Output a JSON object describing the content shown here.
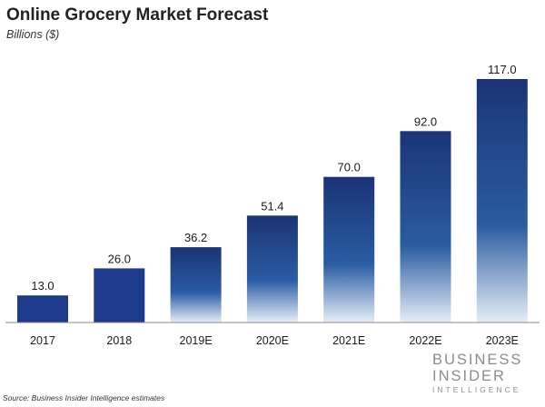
{
  "colors": {
    "bar_solid": "#1e3a8a",
    "bar_dark": "#1b3476",
    "bar_mid": "#2a5ca3",
    "bar_fade": "#e6eef7",
    "axis": "#888888",
    "text": "#1a1a1a",
    "brand": "#8c8c8c"
  },
  "chart_data": {
    "type": "bar",
    "title": "Online Grocery Market Forecast",
    "subtitle": "Billions ($)",
    "categories": [
      "2017",
      "2018",
      "2019E",
      "2020E",
      "2021E",
      "2022E",
      "2023E"
    ],
    "values": [
      13.0,
      26.0,
      36.2,
      51.4,
      70.0,
      92.0,
      117.0
    ],
    "data_labels": [
      "13.0",
      "26.0",
      "36.2",
      "51.4",
      "70.0",
      "92.0",
      "117.0"
    ],
    "estimated": [
      false,
      false,
      true,
      true,
      true,
      true,
      true
    ],
    "xlabel": "",
    "ylabel": "",
    "ylim": [
      0,
      117
    ],
    "grid": false,
    "legend": "none"
  },
  "source": "Source: Business Insider Intelligence estimates",
  "brand": {
    "line1": "BUSINESS",
    "line2": "INSIDER",
    "line3": "INTELLIGENCE"
  }
}
